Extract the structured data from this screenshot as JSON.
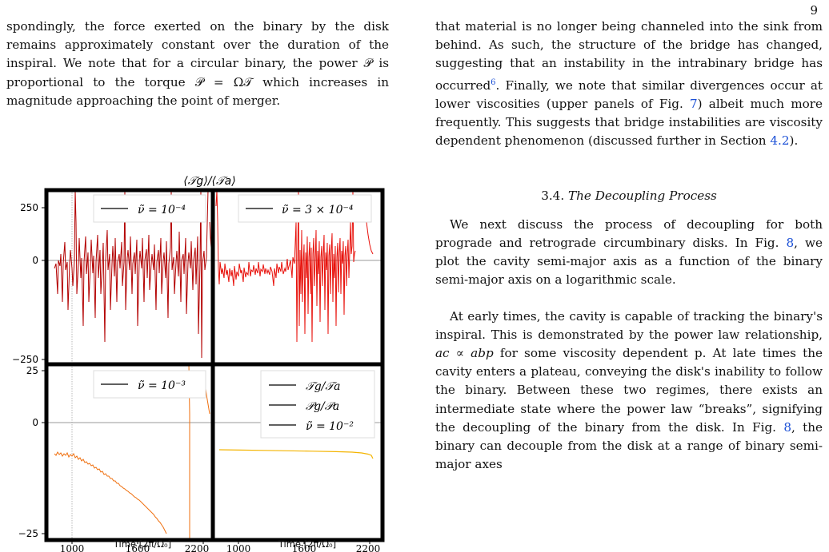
{
  "page_number": "9",
  "left_column": {
    "paragraph": "spondingly, the force exerted on the binary by the disk remains approximately constant over the duration of the inspiral. We note that for a circular binary, the power 𝒫 is proportional to the torque 𝒫 = Ω𝒯 which increases in magnitude approaching the point of merger."
  },
  "figure": {
    "title": "⟨𝒯g⟩/⟨𝒯a⟩",
    "xlabel": "Time [2π/Ω₀]",
    "panels": [
      {
        "legend": [
          "ν̃ = 10⁻⁴"
        ],
        "yticks": [
          "250",
          "0",
          "−250"
        ]
      },
      {
        "legend": [
          "ν̃ = 3 × 10⁻⁴"
        ]
      },
      {
        "legend": [
          "ν̃ = 10⁻³"
        ],
        "yticks": [
          "25",
          "0",
          "−25"
        ],
        "xticks": [
          "1000",
          "1600",
          "2200"
        ]
      },
      {
        "legend": [
          "𝒯g/𝒯a",
          "𝒫g/𝒫a",
          "ν̃ = 10⁻²"
        ],
        "xticks": [
          "1000",
          "1600",
          "2200"
        ]
      }
    ],
    "colors": {
      "nu_1e-4": "#b30000",
      "nu_3e-4": "#e8120c",
      "nu_1e-3": "#ef6f0e",
      "nu_1e-2": "#f4b400",
      "zero_line": "#999999",
      "vline": "#9a9a9a"
    }
  },
  "right_column": {
    "p1_a": "that material is no longer being channeled into the sink from behind. As such, the structure of the bridge has changed, suggesting that an instability in the intrabinary bridge has occurred",
    "p1_fn": "6",
    "p1_b": ". Finally, we note that similar divergences occur at lower viscosities (upper panels of Fig. ",
    "p1_fig": "7",
    "p1_c": ") albeit much more frequently. This suggests that bridge instabilities are viscosity dependent phenomenon (discussed further in Section ",
    "p1_sec": "4.2",
    "p1_d": ").",
    "section_number": "3.4.",
    "section_name": "The Decoupling Process",
    "p2_a": "We next discuss the process of decoupling for both prograde and retrograde circumbinary disks. In Fig. ",
    "p2_fig": "8",
    "p2_b": ", we plot the cavity semi-major axis as a function of the binary semi-major axis on a logarithmic scale.",
    "p3_a": "At early times, the cavity is capable of tracking the binary's inspiral. This is demonstrated by the power law relationship, ",
    "p3_math": "ac ∝ abp",
    "p3_b": " for some viscosity dependent p. At late times the cavity enters a plateau, conveying the disk's inability to follow the binary. Between these two regimes, there exists an intermediate state where the power law “breaks”, signifying the decoupling of the binary from the disk. In Fig. ",
    "p3_fig": "8",
    "p3_c": ", the binary can decouple from the disk at a range of binary semi-major axes"
  }
}
